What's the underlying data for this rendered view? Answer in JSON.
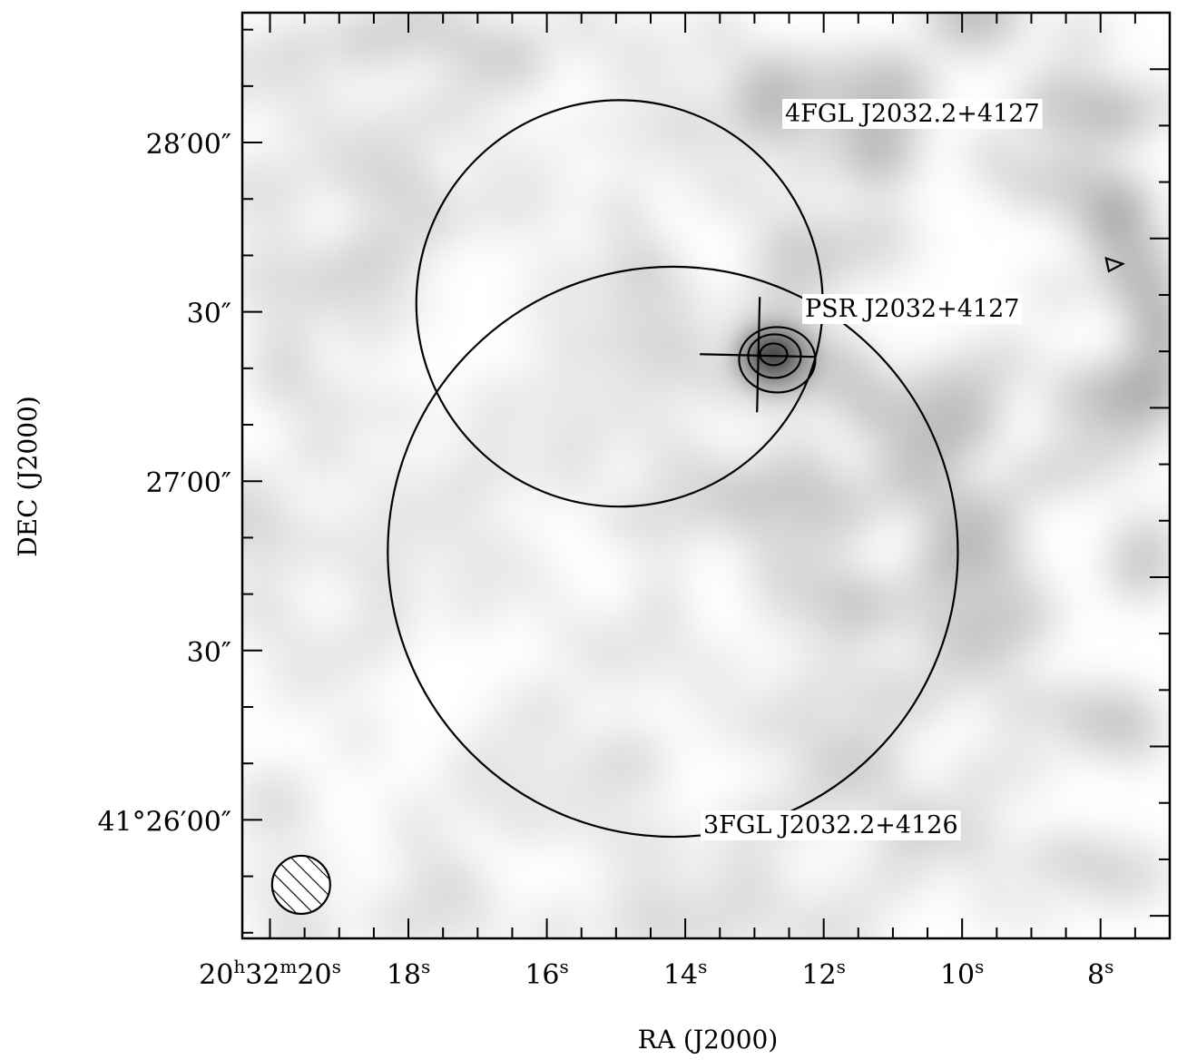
{
  "chart_data": {
    "type": "contour",
    "xlabel": "RA (J2000)",
    "ylabel": "DEC (J2000)",
    "x_ticks": [
      {
        "ra_s": 20,
        "h": "20",
        "m": "32",
        "s": "20"
      },
      {
        "ra_s": 18,
        "s": "18"
      },
      {
        "ra_s": 16,
        "s": "16"
      },
      {
        "ra_s": 14,
        "s": "14"
      },
      {
        "ra_s": 12,
        "s": "12"
      },
      {
        "ra_s": 10,
        "s": "10"
      },
      {
        "ra_s": 8,
        "s": "8"
      }
    ],
    "y_ticks": [
      {
        "dec_arcsec": 120,
        "deg": "",
        "min": "28",
        "sec": "00"
      },
      {
        "dec_arcsec": 90,
        "deg": "",
        "min": "",
        "sec": "30"
      },
      {
        "dec_arcsec": 60,
        "deg": "",
        "min": "27",
        "sec": "00"
      },
      {
        "dec_arcsec": 30,
        "deg": "",
        "min": "",
        "sec": "30"
      },
      {
        "dec_arcsec": 0,
        "deg": "41",
        "min": "26",
        "sec": "00"
      }
    ],
    "xlim_ra_s": [
      20.4,
      7.0
    ],
    "ylim_dec_arcsec": [
      -21,
      143
    ],
    "dec_zero_label": "41°26′00″",
    "sources": [
      {
        "name": "4FGL J2032.2+4127",
        "type": "circle",
        "ra_s": 14.95,
        "dec_arcsec": 91.5,
        "radius_arcsec": 36
      },
      {
        "name": "3FGL J2032.2+4126",
        "type": "circle",
        "ra_s": 14.18,
        "dec_arcsec": 47.5,
        "radius_arcsec": 50.5
      },
      {
        "name": "PSR J2032+4127",
        "type": "cross",
        "ra_s": 12.95,
        "dec_arcsec": 82.5
      }
    ],
    "emission_peak": {
      "ra_s": 12.75,
      "dec_arcsec": 82.8,
      "contour_levels": 3
    },
    "beam": {
      "ra_s": 19.55,
      "dec_arcsec": -11.5,
      "radius_arcsec": 5,
      "hatched": true
    }
  }
}
